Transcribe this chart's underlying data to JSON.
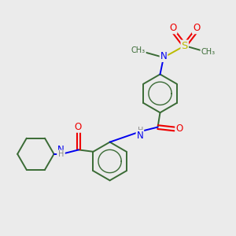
{
  "background_color": "#ebebeb",
  "bond_color": "#3a6b35",
  "atom_colors": {
    "N": "#0000ee",
    "O": "#ee0000",
    "S": "#bbbb00",
    "H": "#888888",
    "C": "#3a6b35"
  },
  "figsize": [
    3.0,
    3.0
  ],
  "dpi": 100,
  "xlim": [
    0,
    10
  ],
  "ylim": [
    0,
    10
  ]
}
